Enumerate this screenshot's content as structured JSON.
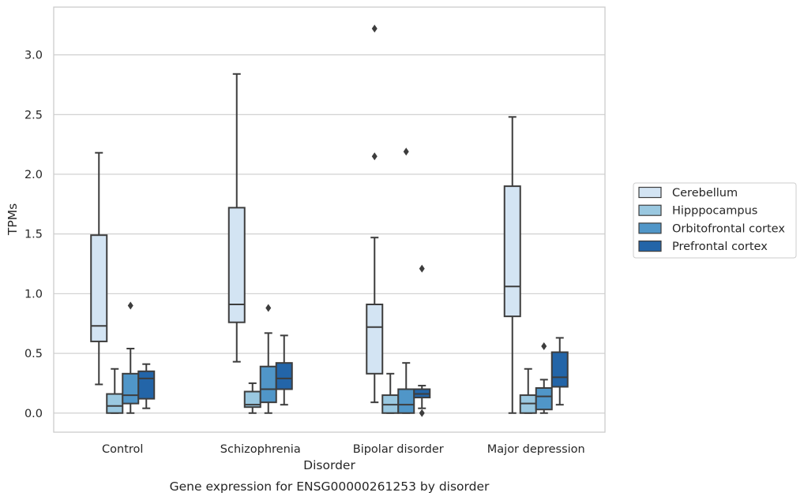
{
  "chart_data": {
    "type": "box",
    "title": "",
    "caption": "Gene expression for ENSG00000261253 by disorder",
    "xlabel": "Disorder",
    "ylabel": "TPMs",
    "ylim": [
      -0.16,
      3.4
    ],
    "yticks": [
      "0.0",
      "0.5",
      "1.0",
      "1.5",
      "2.0",
      "2.5",
      "3.0"
    ],
    "grid": true,
    "legend_position": "right",
    "categories": [
      "Control",
      "Schizophrenia",
      "Bipolar disorder",
      "Major depression"
    ],
    "series": [
      {
        "name": "Cerebellum",
        "color": "#d3e4f3",
        "boxes": [
          {
            "whislo": 0.24,
            "q1": 0.6,
            "med": 0.73,
            "q3": 1.49,
            "whishi": 2.18,
            "fliers": []
          },
          {
            "whislo": 0.43,
            "q1": 0.76,
            "med": 0.91,
            "q3": 1.72,
            "whishi": 2.84,
            "fliers": []
          },
          {
            "whislo": 0.09,
            "q1": 0.33,
            "med": 0.72,
            "q3": 0.91,
            "whishi": 1.47,
            "fliers": [
              2.15,
              3.22
            ]
          },
          {
            "whislo": 0.0,
            "q1": 0.81,
            "med": 1.06,
            "q3": 1.9,
            "whishi": 2.48,
            "fliers": []
          }
        ]
      },
      {
        "name": "Hipppocampus",
        "color": "#9ac8e0",
        "boxes": [
          {
            "whislo": 0.0,
            "q1": 0.0,
            "med": 0.06,
            "q3": 0.16,
            "whishi": 0.37,
            "fliers": []
          },
          {
            "whislo": 0.0,
            "q1": 0.05,
            "med": 0.07,
            "q3": 0.18,
            "whishi": 0.25,
            "fliers": []
          },
          {
            "whislo": 0.0,
            "q1": 0.0,
            "med": 0.07,
            "q3": 0.15,
            "whishi": 0.33,
            "fliers": []
          },
          {
            "whislo": 0.0,
            "q1": 0.0,
            "med": 0.08,
            "q3": 0.15,
            "whishi": 0.37,
            "fliers": []
          }
        ]
      },
      {
        "name": "Orbitofrontal cortex",
        "color": "#5096c8",
        "boxes": [
          {
            "whislo": 0.0,
            "q1": 0.08,
            "med": 0.15,
            "q3": 0.33,
            "whishi": 0.54,
            "fliers": [
              0.9
            ]
          },
          {
            "whislo": 0.0,
            "q1": 0.09,
            "med": 0.2,
            "q3": 0.39,
            "whishi": 0.67,
            "fliers": [
              0.88
            ]
          },
          {
            "whislo": 0.0,
            "q1": 0.0,
            "med": 0.07,
            "q3": 0.2,
            "whishi": 0.42,
            "fliers": [
              2.19
            ]
          },
          {
            "whislo": 0.0,
            "q1": 0.03,
            "med": 0.14,
            "q3": 0.21,
            "whishi": 0.28,
            "fliers": [
              0.56
            ]
          }
        ]
      },
      {
        "name": "Prefrontal cortex",
        "color": "#2365a8",
        "boxes": [
          {
            "whislo": 0.04,
            "q1": 0.12,
            "med": 0.29,
            "q3": 0.35,
            "whishi": 0.41,
            "fliers": []
          },
          {
            "whislo": 0.07,
            "q1": 0.2,
            "med": 0.29,
            "q3": 0.42,
            "whishi": 0.65,
            "fliers": []
          },
          {
            "whislo": 0.04,
            "q1": 0.13,
            "med": 0.16,
            "q3": 0.2,
            "whishi": 0.23,
            "fliers": [
              0.0,
              1.21
            ]
          },
          {
            "whislo": 0.07,
            "q1": 0.22,
            "med": 0.3,
            "q3": 0.51,
            "whishi": 0.63,
            "fliers": []
          }
        ]
      }
    ]
  }
}
